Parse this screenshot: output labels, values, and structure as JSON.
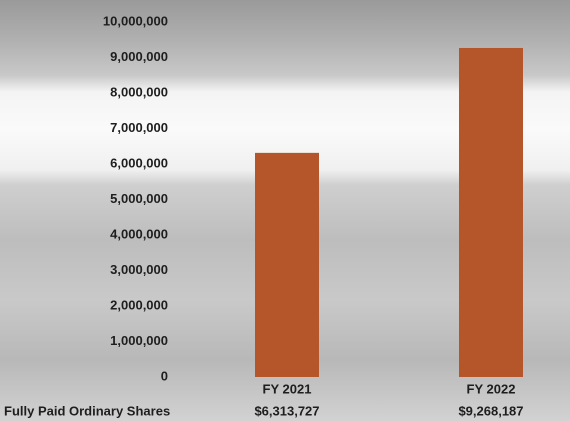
{
  "chart_data": {
    "type": "bar",
    "categories": [
      "FY 2021",
      "FY 2022"
    ],
    "series": [
      {
        "name": "Fully Paid Ordinary Shares",
        "color": "#b5562a",
        "values": [
          6313727,
          9268187
        ],
        "value_labels": [
          "$6,313,727",
          "$9,268,187"
        ]
      }
    ],
    "ylim": [
      0,
      10000000
    ],
    "yticks": [
      0,
      {
        "value": 1000000,
        "label": "1,000,000"
      },
      {
        "value": 2000000,
        "label": "2,000,000"
      },
      {
        "value": 3000000,
        "label": "3,000,000"
      },
      {
        "value": 4000000,
        "label": "4,000,000"
      },
      {
        "value": 5000000,
        "label": "5,000,000"
      },
      {
        "value": 6000000,
        "label": "6,000,000"
      },
      {
        "value": 7000000,
        "label": "7,000,000"
      },
      {
        "value": 8000000,
        "label": "8,000,000"
      },
      {
        "value": 9000000,
        "label": "9,000,000"
      },
      {
        "value": 10000000,
        "label": "10,000,000"
      }
    ],
    "grid": false
  }
}
